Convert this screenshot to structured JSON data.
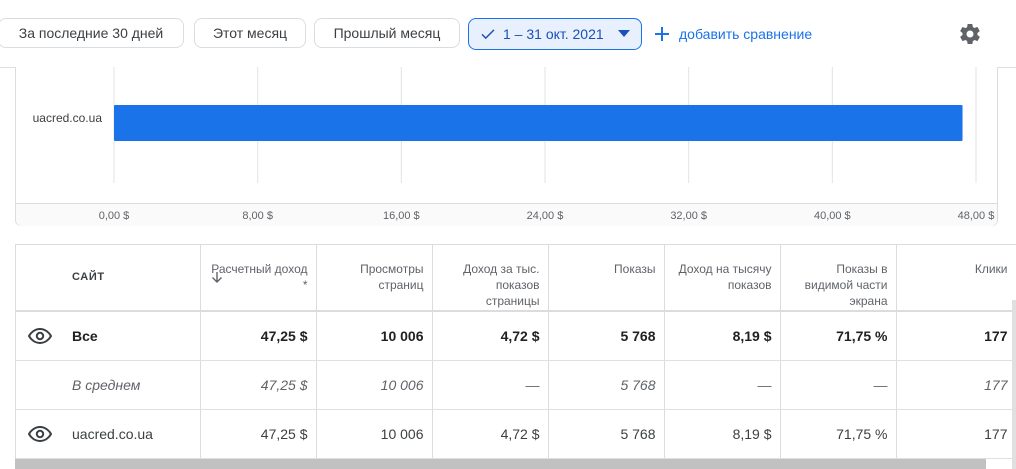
{
  "toolbar": {
    "preset_30": "За последние 30 дней",
    "preset_this_month": "Этот месяц",
    "preset_last_month": "Прошлый месяц",
    "date_range": "1 – 31 окт. 2021",
    "add_compare": "добавить сравнение"
  },
  "chart_data": {
    "type": "bar",
    "orientation": "horizontal",
    "categories": [
      "uacred.co.ua"
    ],
    "values": [
      47.25
    ],
    "xlim": [
      0,
      48
    ],
    "xticks": [
      "0,00 $",
      "8,00 $",
      "16,00 $",
      "24,00 $",
      "32,00 $",
      "40,00 $",
      "48,00 $"
    ],
    "tick_values": [
      0,
      8,
      16,
      24,
      32,
      40,
      48
    ],
    "bar_color": "#1a73e8",
    "grid": true
  },
  "table": {
    "headers": {
      "site": "САЙТ",
      "revenue": "Расчетный доход *",
      "pageviews": "Просмотры страниц",
      "page_rpm": "Доход за тыс. показов страницы",
      "impressions": "Показы",
      "rpm": "Доход на тысячу показов",
      "viewable": "Показы в видимой части экрана",
      "clicks": "Клики"
    },
    "total": {
      "site": "Все",
      "revenue": "47,25 $",
      "pageviews": "10 006",
      "page_rpm": "4,72 $",
      "impressions": "5 768",
      "rpm": "8,19 $",
      "viewable": "71,75 %",
      "clicks": "177"
    },
    "average": {
      "site": "В среднем",
      "revenue": "47,25 $",
      "pageviews": "10 006",
      "page_rpm": "—",
      "impressions": "5 768",
      "rpm": "—",
      "viewable": "—",
      "clicks": "177"
    },
    "rows": [
      {
        "site": "uacred.co.ua",
        "revenue": "47,25 $",
        "pageviews": "10 006",
        "page_rpm": "4,72 $",
        "impressions": "5 768",
        "rpm": "8,19 $",
        "viewable": "71,75 %",
        "clicks": "177"
      }
    ]
  }
}
